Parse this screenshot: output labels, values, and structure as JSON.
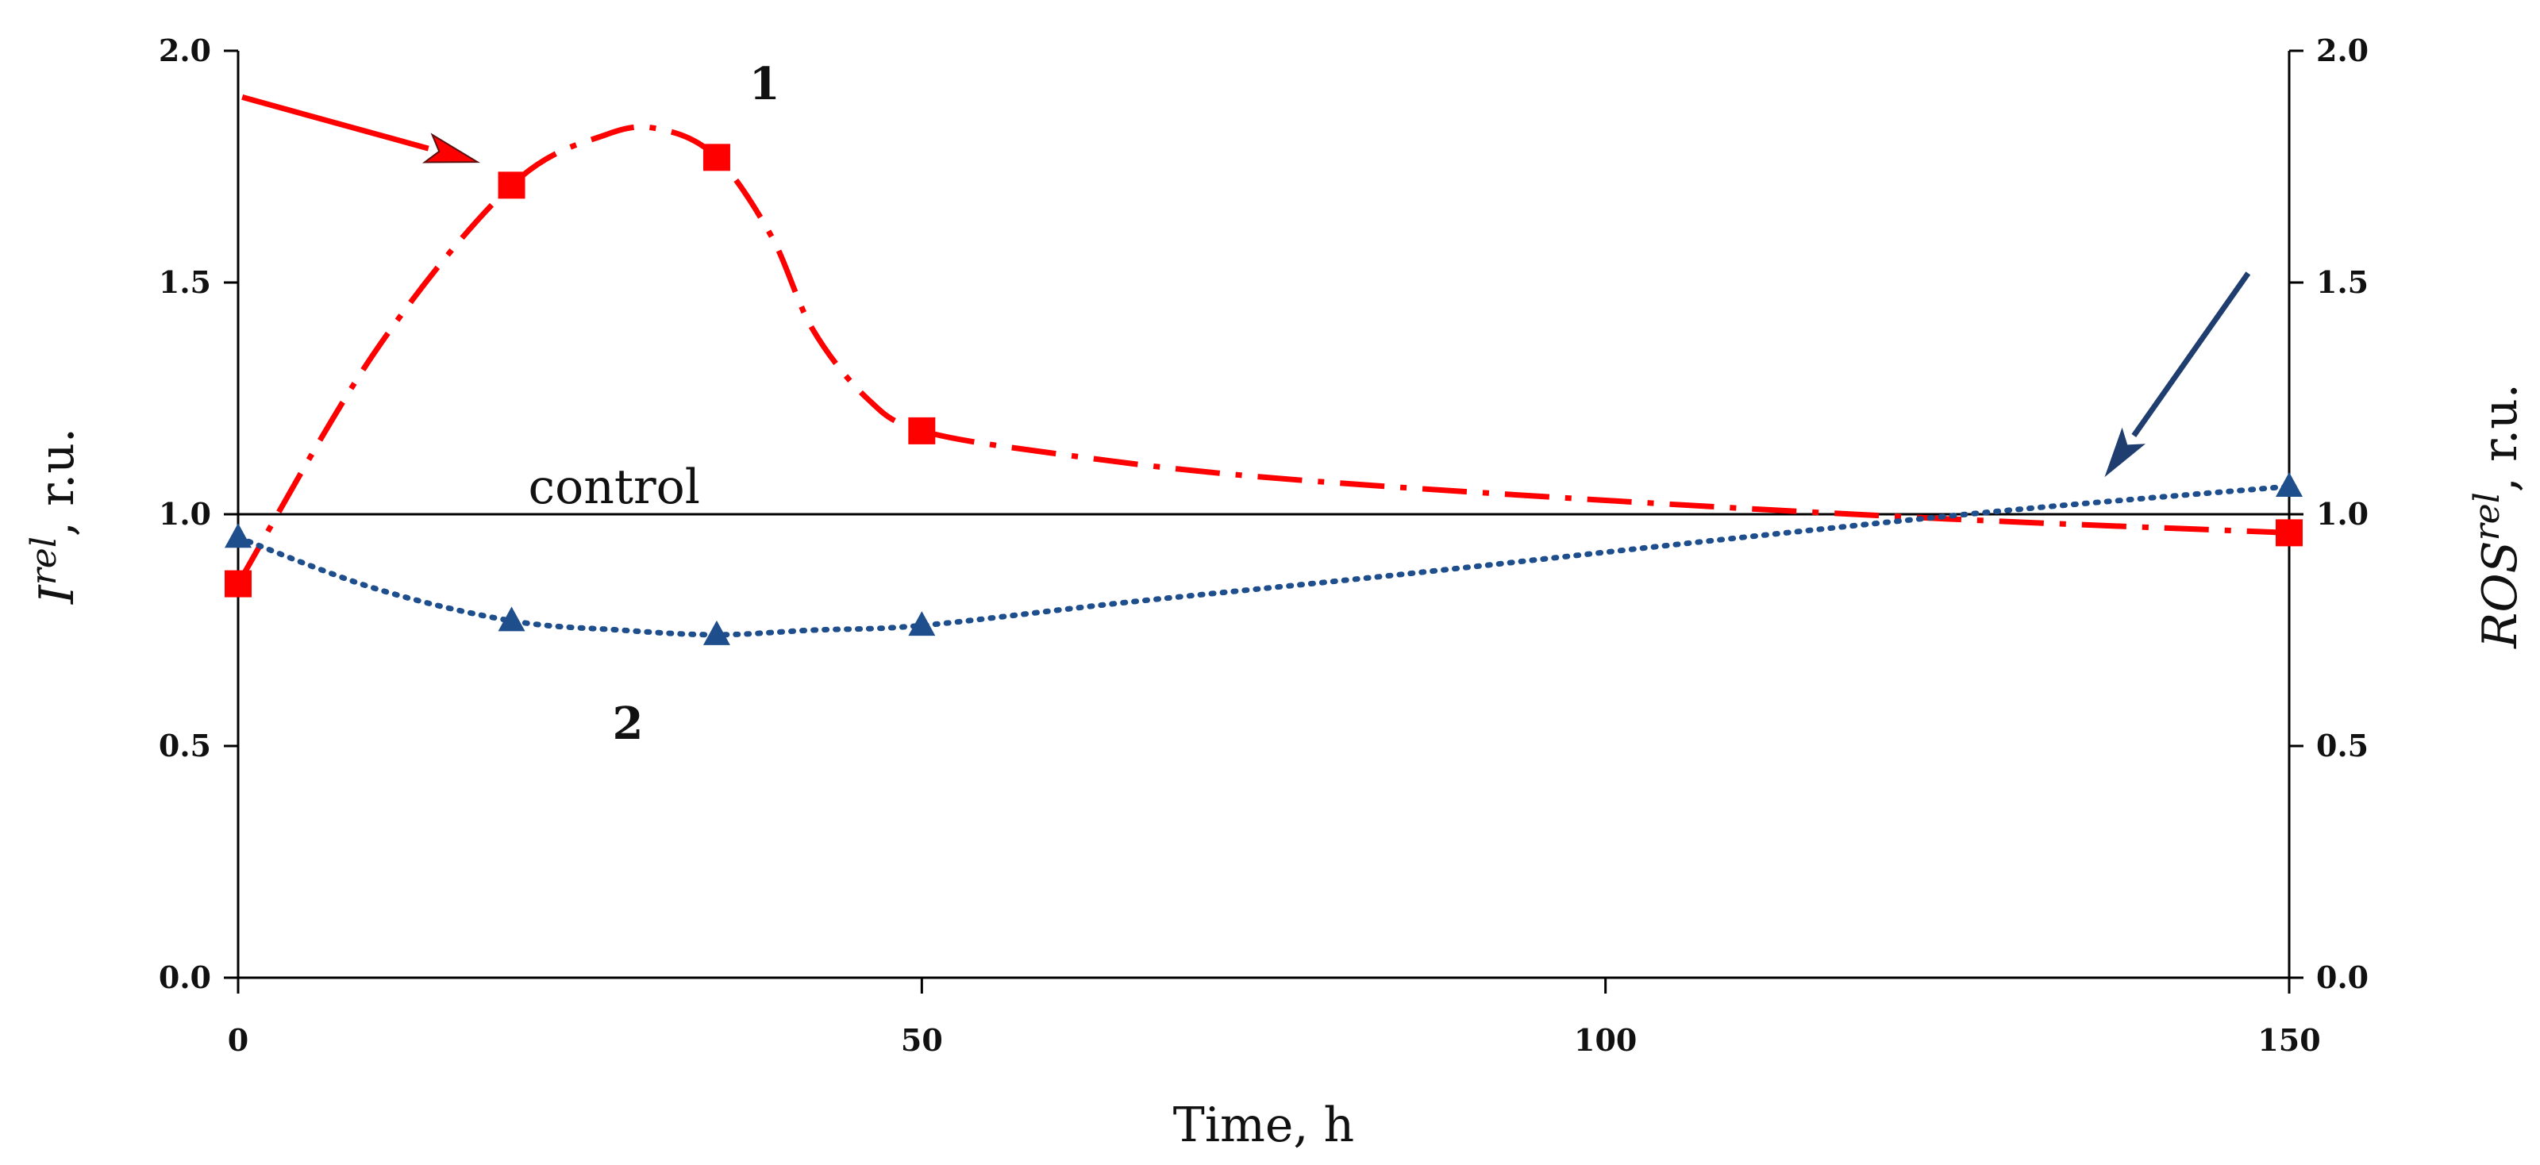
{
  "chart_data": {
    "type": "line",
    "title": "",
    "xlabel": "Time, h",
    "ylabel_left": {
      "main": "I",
      "sup": "rel",
      "unit": ", r.u."
    },
    "ylabel_right": {
      "main": "ROS",
      "sup": "rel",
      "unit": ", r.u."
    },
    "xlim": [
      0,
      150
    ],
    "ylim": [
      0.0,
      2.0
    ],
    "x_ticks": [
      0,
      50,
      100,
      150
    ],
    "x_tick_labels": [
      "0",
      "50",
      "100",
      "150"
    ],
    "y_ticks": [
      0.0,
      0.5,
      1.0,
      1.5,
      2.0
    ],
    "y_tick_labels": [
      "0.0",
      "0.5",
      "1.0",
      "1.5",
      "2.0"
    ],
    "grid": false,
    "legend": "none",
    "series": [
      {
        "name": "1",
        "axis": "left",
        "color": "#ff0000",
        "marker": "square",
        "line_style": "dash-dot",
        "x": [
          0,
          20,
          35,
          50,
          150
        ],
        "y": [
          0.85,
          1.71,
          1.77,
          1.18,
          0.96
        ],
        "curve": [
          [
            0,
            0.85
          ],
          [
            10,
            1.35
          ],
          [
            20,
            1.71
          ],
          [
            27,
            1.82
          ],
          [
            31,
            1.83
          ],
          [
            35,
            1.77
          ],
          [
            39,
            1.6
          ],
          [
            42,
            1.4
          ],
          [
            46,
            1.25
          ],
          [
            50,
            1.18
          ],
          [
            60,
            1.13
          ],
          [
            75,
            1.08
          ],
          [
            100,
            1.03
          ],
          [
            125,
            0.99
          ],
          [
            150,
            0.96
          ]
        ]
      },
      {
        "name": "2",
        "axis": "right",
        "color": "#1f4e8c",
        "marker": "triangle",
        "line_style": "dotted",
        "x": [
          0,
          20,
          35,
          50,
          150
        ],
        "y": [
          0.95,
          0.77,
          0.74,
          0.76,
          1.06
        ],
        "curve": [
          [
            0,
            0.95
          ],
          [
            10,
            0.84
          ],
          [
            20,
            0.77
          ],
          [
            28,
            0.75
          ],
          [
            35,
            0.74
          ],
          [
            42,
            0.75
          ],
          [
            50,
            0.76
          ],
          [
            65,
            0.81
          ],
          [
            85,
            0.87
          ],
          [
            110,
            0.95
          ],
          [
            130,
            1.01
          ],
          [
            150,
            1.06
          ]
        ]
      }
    ],
    "reference_line": {
      "label": "control",
      "y": 1.0,
      "color": "#000000"
    },
    "annotations": [
      {
        "text": "1",
        "x": 38.5,
        "y": 1.93
      },
      {
        "text": "2",
        "x": 28.5,
        "y": 0.55
      }
    ],
    "arrows": [
      {
        "name": "red-arrow",
        "color": "#ff0000",
        "from": [
          0.3,
          1.9
        ],
        "to": [
          17.5,
          1.76
        ]
      },
      {
        "name": "blue-arrow",
        "color": "#1f3d6e",
        "from": [
          147,
          1.52
        ],
        "to": [
          136.5,
          1.08
        ]
      }
    ]
  }
}
